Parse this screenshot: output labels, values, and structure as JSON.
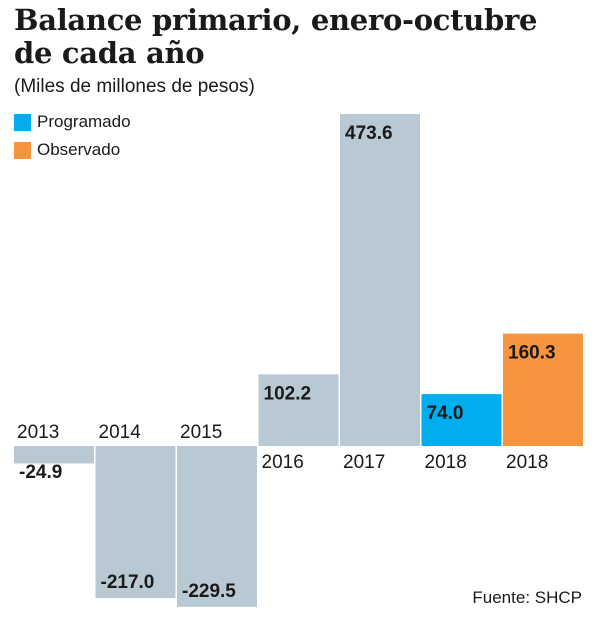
{
  "header": {
    "title": "Balance primario, enero-octubre de cada año",
    "subtitle": "(Miles de millones de pesos)"
  },
  "legend": [
    {
      "label": "Programado",
      "color": "#00aeef"
    },
    {
      "label": "Observado",
      "color": "#f7943d"
    }
  ],
  "source": "Fuente: SHCP",
  "chart_data": {
    "type": "bar",
    "title": "Balance primario, enero-octubre de cada año",
    "subtitle": "(Miles de millones de pesos)",
    "xlabel": "",
    "ylabel": "",
    "categories": [
      "2013",
      "2014",
      "2015",
      "2016",
      "2017",
      "2018",
      "2018"
    ],
    "values": [
      -24.9,
      -217.0,
      -229.5,
      102.2,
      473.6,
      74.0,
      160.3
    ],
    "labels": [
      "-24.9",
      "-217.0",
      "-229.5",
      "102.2",
      "473.6",
      "74.0",
      "160.3"
    ],
    "series_type": [
      "historical",
      "historical",
      "historical",
      "historical",
      "historical",
      "Programado",
      "Observado"
    ],
    "colors": {
      "historical": "#b9c9d3",
      "Programado": "#00aeef",
      "Observado": "#f7943d"
    },
    "ylim": [
      -229.5,
      473.6
    ],
    "grid": false,
    "legend_position": "top-left"
  }
}
